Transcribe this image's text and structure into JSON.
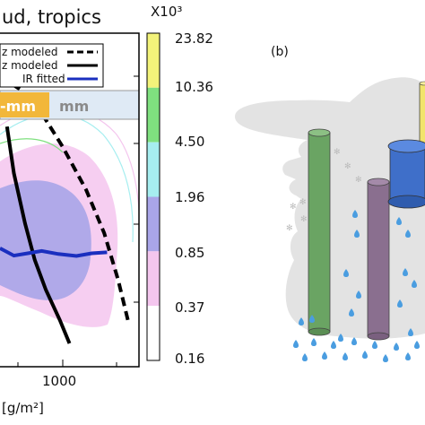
{
  "chart_data": {
    "type": "heatmap",
    "title": "ud, tropics",
    "xlabel": "[g/m²]",
    "x_ticks": [
      "1000"
    ],
    "legend": [
      {
        "label": "z modeled",
        "style": "dashed",
        "color": "#000000"
      },
      {
        "label": "z modeled",
        "style": "solid",
        "color": "#000000"
      },
      {
        "label": "IR fitted",
        "style": "solid",
        "color": "#1a2fbf"
      }
    ],
    "category_box": [
      "-mm",
      "mm"
    ],
    "colorbar": {
      "multiplier": "X10³",
      "ticks": [
        "23.82",
        "10.36",
        "4.50",
        "1.96",
        "0.85",
        "0.37",
        "0.16"
      ],
      "colors": [
        "#f3f37a",
        "#7fe07f",
        "#a6eef0",
        "#a9a5e8",
        "#f4c6ee",
        "#ffffff"
      ]
    },
    "series": [
      {
        "name": "dashed",
        "x": [
          0.0,
          0.15,
          0.3,
          0.45,
          0.62,
          0.75,
          0.85,
          0.92
        ],
        "y": [
          0.13,
          0.17,
          0.24,
          0.34,
          0.47,
          0.6,
          0.74,
          0.86
        ]
      },
      {
        "name": "solid",
        "x": [
          0.05,
          0.1,
          0.18,
          0.25,
          0.33,
          0.43,
          0.5
        ],
        "y": [
          0.28,
          0.42,
          0.57,
          0.68,
          0.77,
          0.86,
          0.93
        ]
      },
      {
        "name": "blue",
        "x": [
          0.0,
          0.1,
          0.2,
          0.3,
          0.42,
          0.55,
          0.66,
          0.77
        ],
        "y": [
          0.645,
          0.667,
          0.66,
          0.653,
          0.662,
          0.668,
          0.66,
          0.657
        ]
      }
    ]
  },
  "panel_b": {
    "label": "(b)",
    "colors": {
      "cloud": "#e3e3e3",
      "green": "#6aa463",
      "purple": "#8a6f8f",
      "blue": "#3f6fc9",
      "yellow": "#f2e46b",
      "rain": "#4a9de0"
    }
  }
}
